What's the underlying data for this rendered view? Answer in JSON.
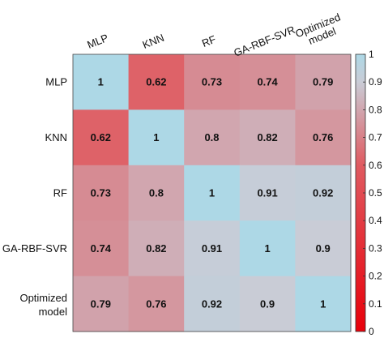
{
  "chart_data": {
    "type": "heatmap",
    "title": "",
    "columns": [
      "MLP",
      "KNN",
      "RF",
      "GA-RBF-SVR",
      "Optimized model"
    ],
    "rows": [
      "MLP",
      "KNN",
      "RF",
      "GA-RBF-SVR",
      "Optimized model"
    ],
    "values": [
      [
        1,
        0.62,
        0.73,
        0.74,
        0.79
      ],
      [
        0.62,
        1,
        0.8,
        0.82,
        0.76
      ],
      [
        0.73,
        0.8,
        1,
        0.91,
        0.92
      ],
      [
        0.74,
        0.82,
        0.91,
        1,
        0.9
      ],
      [
        0.79,
        0.76,
        0.92,
        0.9,
        1
      ]
    ],
    "colorbar": {
      "range": [
        0,
        1
      ],
      "ticks": [
        "0",
        "0.1",
        "0.2",
        "0.3",
        "0.4",
        "0.5",
        "0.6",
        "0.7",
        "0.8",
        "0.9",
        "1"
      ],
      "colors": [
        "#e8000a",
        "#e05a60",
        "#c9ccd6",
        "#add8e6"
      ],
      "stops": [
        0,
        0.6,
        0.9,
        1
      ]
    }
  }
}
